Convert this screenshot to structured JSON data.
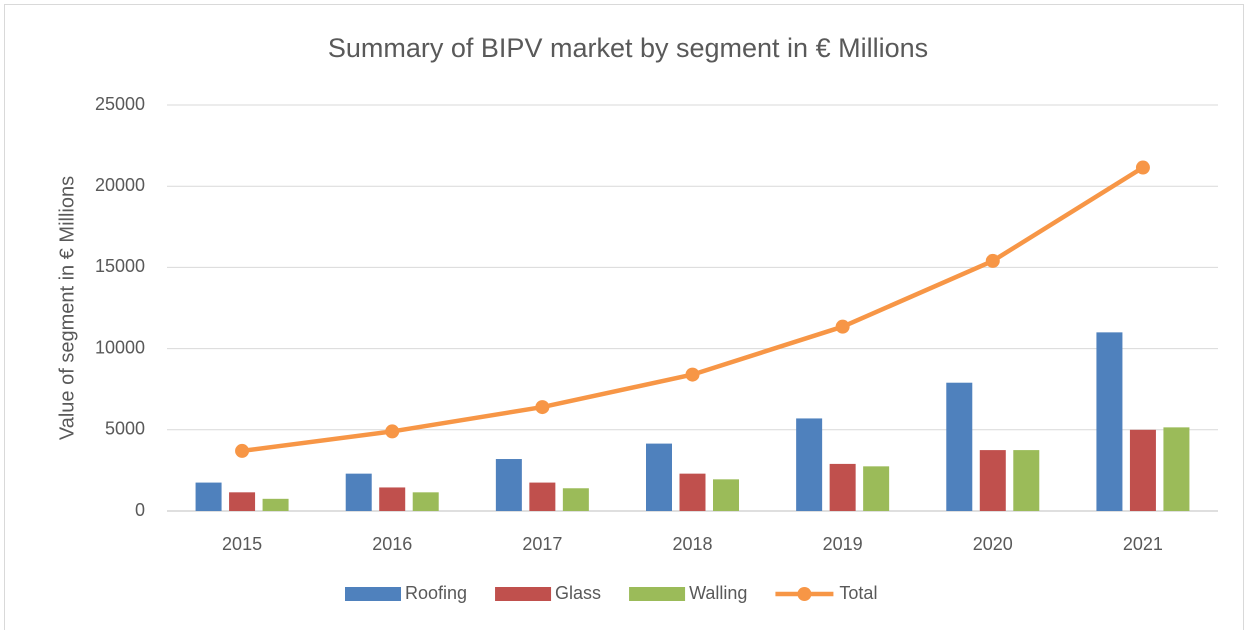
{
  "chart_data": {
    "type": "bar",
    "title": "Summary of BIPV market by segment in € Millions",
    "y_label": "Value of segment in € Millions",
    "categories": [
      "2015",
      "2016",
      "2017",
      "2018",
      "2019",
      "2020",
      "2021"
    ],
    "series": [
      {
        "name": "Roofing",
        "color": "#4f81bd",
        "type": "bar",
        "values": [
          1750,
          2300,
          3200,
          4150,
          5700,
          7900,
          11000
        ]
      },
      {
        "name": "Glass",
        "color": "#c0504d",
        "type": "bar",
        "values": [
          1150,
          1450,
          1750,
          2300,
          2900,
          3750,
          5000
        ]
      },
      {
        "name": "Walling",
        "color": "#9bbb59",
        "type": "bar",
        "values": [
          750,
          1150,
          1400,
          1950,
          2750,
          3750,
          5150
        ]
      },
      {
        "name": "Total",
        "color": "#f79646",
        "type": "line",
        "values": [
          3700,
          4900,
          6400,
          8400,
          11350,
          15400,
          21150
        ]
      }
    ],
    "ylim": [
      0,
      25000
    ],
    "yticks": [
      0,
      5000,
      10000,
      15000,
      20000,
      25000
    ],
    "grid": true,
    "legend": "bottom"
  }
}
